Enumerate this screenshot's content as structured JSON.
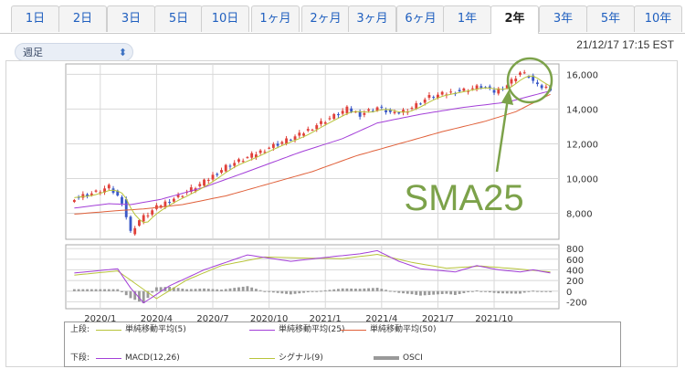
{
  "tabs": [
    "1日",
    "2日",
    "3日",
    "5日",
    "10日",
    "1ヶ月",
    "2ヶ月",
    "3ヶ月",
    "6ヶ月",
    "1年",
    "2年",
    "3年",
    "5年",
    "10年"
  ],
  "active_tab": "2年",
  "period_select": {
    "value": "週足"
  },
  "timestamp": "21/12/17 17:15 EST",
  "annotation": {
    "text": "SMA25",
    "color": "#7ca24a"
  },
  "legend": {
    "upper_label": "上段:",
    "lower_label": "下段:",
    "upper_items": [
      {
        "name": "単純移動平均(5)",
        "color": "#b8c43a"
      },
      {
        "name": "単純移動平均(25)",
        "color": "#a33fd8"
      },
      {
        "name": "単純移動平均(50)",
        "color": "#e0603a"
      }
    ],
    "lower_items": [
      {
        "name": "MACD(12,26)",
        "color": "#a33fd8"
      },
      {
        "name": "シグナル(9)",
        "color": "#b8c43a"
      },
      {
        "name": "OSCI",
        "color": "#999999"
      }
    ]
  },
  "colors": {
    "up": "#e0403a",
    "down": "#3a58c8",
    "sma5": "#b8c43a",
    "sma25": "#a33fd8",
    "sma50": "#e0603a",
    "osci": "#999999",
    "grid": "#d8d8d8"
  },
  "chart_data": [
    {
      "type": "candlestick",
      "title": "",
      "x_ticks": [
        "2020/1",
        "2020/4",
        "2020/7",
        "2020/10",
        "2021/1",
        "2021/4",
        "2021/7",
        "2021/10"
      ],
      "y_ticks": [
        8000,
        10000,
        12000,
        14000,
        16000
      ],
      "ylim": [
        6500,
        16600
      ],
      "grid": true,
      "series": [
        {
          "name": "単純移動平均(5)",
          "values_note": "short moving average"
        },
        {
          "name": "単純移動平均(25)",
          "anchors": [
            [
              0,
              8300
            ],
            [
              8,
              8550
            ],
            [
              13,
              8500
            ],
            [
              20,
              8800
            ],
            [
              30,
              9500
            ],
            [
              40,
              10400
            ],
            [
              52,
              11500
            ],
            [
              62,
              12300
            ],
            [
              70,
              13200
            ],
            [
              80,
              13700
            ],
            [
              90,
              14100
            ],
            [
              100,
              14400
            ],
            [
              110,
              15050
            ]
          ]
        },
        {
          "name": "単純移動平均(50)",
          "anchors": [
            [
              0,
              7950
            ],
            [
              10,
              8150
            ],
            [
              16,
              8250
            ],
            [
              25,
              8500
            ],
            [
              35,
              9000
            ],
            [
              45,
              9700
            ],
            [
              55,
              10400
            ],
            [
              65,
              11300
            ],
            [
              75,
              12000
            ],
            [
              85,
              12700
            ],
            [
              95,
              13300
            ],
            [
              102,
              13850
            ],
            [
              110,
              14850
            ]
          ]
        }
      ],
      "close_anchors": [
        [
          0,
          8900
        ],
        [
          5,
          9200
        ],
        [
          8,
          9500
        ],
        [
          11,
          8700
        ],
        [
          13,
          6900
        ],
        [
          15,
          7600
        ],
        [
          20,
          8500
        ],
        [
          25,
          9100
        ],
        [
          30,
          9800
        ],
        [
          35,
          10700
        ],
        [
          40,
          11200
        ],
        [
          45,
          11800
        ],
        [
          48,
          12100
        ],
        [
          52,
          12500
        ],
        [
          56,
          13100
        ],
        [
          60,
          13600
        ],
        [
          63,
          14000
        ],
        [
          66,
          13700
        ],
        [
          70,
          14100
        ],
        [
          74,
          13700
        ],
        [
          78,
          14100
        ],
        [
          82,
          14700
        ],
        [
          86,
          14900
        ],
        [
          90,
          15100
        ],
        [
          94,
          15300
        ],
        [
          97,
          15000
        ],
        [
          100,
          15400
        ],
        [
          103,
          16100
        ],
        [
          105,
          15900
        ],
        [
          107,
          15300
        ],
        [
          110,
          15200
        ]
      ]
    },
    {
      "type": "line",
      "title": "",
      "y_ticks": [
        -200,
        0,
        200,
        400,
        600,
        800
      ],
      "ylim": [
        -330,
        870
      ],
      "series": [
        {
          "name": "MACD(12,26)",
          "anchors": [
            [
              0,
              340
            ],
            [
              10,
              420
            ],
            [
              13,
              60
            ],
            [
              16,
              -220
            ],
            [
              22,
              100
            ],
            [
              30,
              400
            ],
            [
              40,
              680
            ],
            [
              50,
              560
            ],
            [
              60,
              650
            ],
            [
              66,
              700
            ],
            [
              70,
              760
            ],
            [
              75,
              560
            ],
            [
              80,
              420
            ],
            [
              88,
              360
            ],
            [
              93,
              480
            ],
            [
              98,
              400
            ],
            [
              103,
              360
            ],
            [
              106,
              400
            ],
            [
              110,
              340
            ]
          ]
        },
        {
          "name": "シグナル(9)",
          "anchors": [
            [
              0,
              300
            ],
            [
              10,
              380
            ],
            [
              15,
              90
            ],
            [
              19,
              -140
            ],
            [
              26,
              210
            ],
            [
              34,
              480
            ],
            [
              44,
              640
            ],
            [
              54,
              620
            ],
            [
              62,
              610
            ],
            [
              70,
              690
            ],
            [
              78,
              540
            ],
            [
              86,
              430
            ],
            [
              94,
              470
            ],
            [
              102,
              420
            ],
            [
              110,
              360
            ]
          ]
        },
        {
          "name": "OSCI",
          "type": "bar",
          "source": "MACD - シグナル"
        }
      ]
    }
  ]
}
